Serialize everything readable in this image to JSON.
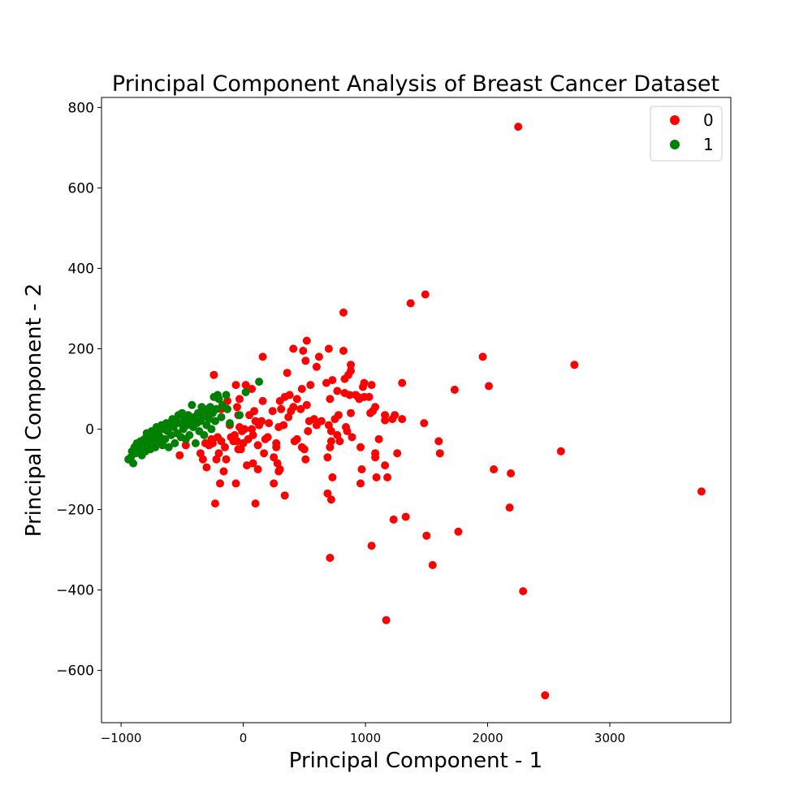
{
  "chart_data": {
    "type": "scatter",
    "title": "Principal Component Analysis of Breast Cancer Dataset",
    "xlabel": "Principal Component - 1",
    "ylabel": "Principal Component - 2",
    "xlim": [
      -1160,
      3990
    ],
    "ylim": [
      -730,
      825
    ],
    "xticks": [
      {
        "value": -1000,
        "label": "−1000"
      },
      {
        "value": 0,
        "label": "0"
      },
      {
        "value": 1000,
        "label": "1000"
      },
      {
        "value": 2000,
        "label": "2000"
      },
      {
        "value": 3000,
        "label": "3000"
      }
    ],
    "yticks": [
      {
        "value": 800,
        "label": "800"
      },
      {
        "value": 600,
        "label": "600"
      },
      {
        "value": 400,
        "label": "400"
      },
      {
        "value": 200,
        "label": "200"
      },
      {
        "value": 0,
        "label": "0"
      },
      {
        "value": -200,
        "label": "−200"
      },
      {
        "value": -400,
        "label": "−400"
      },
      {
        "value": -600,
        "label": "−600"
      }
    ],
    "grid": false,
    "legend": "top-right",
    "series": [
      {
        "name": "0",
        "color": "#ff0000",
        "points": [
          [
            2250,
            752
          ],
          [
            2470,
            -662
          ],
          [
            3750,
            -155
          ],
          [
            2710,
            160
          ],
          [
            2600,
            -55
          ],
          [
            2290,
            -403
          ],
          [
            2180,
            -195
          ],
          [
            2190,
            -110
          ],
          [
            2050,
            -100
          ],
          [
            2010,
            107
          ],
          [
            1960,
            180
          ],
          [
            1760,
            -255
          ],
          [
            1730,
            98
          ],
          [
            1610,
            -60
          ],
          [
            1600,
            -30
          ],
          [
            1550,
            -338
          ],
          [
            1500,
            -265
          ],
          [
            1480,
            15
          ],
          [
            1490,
            335
          ],
          [
            1370,
            313
          ],
          [
            1330,
            -218
          ],
          [
            1300,
            115
          ],
          [
            1300,
            25
          ],
          [
            1260,
            -60
          ],
          [
            1240,
            35
          ],
          [
            1230,
            -225
          ],
          [
            1220,
            25
          ],
          [
            1180,
            -120
          ],
          [
            1160,
            -90
          ],
          [
            1160,
            35
          ],
          [
            1160,
            22
          ],
          [
            1170,
            -475
          ],
          [
            1110,
            -25
          ],
          [
            1090,
            -120
          ],
          [
            1080,
            -70
          ],
          [
            1080,
            -60
          ],
          [
            1080,
            55
          ],
          [
            1060,
            45
          ],
          [
            1050,
            -290
          ],
          [
            1050,
            110
          ],
          [
            1040,
            40
          ],
          [
            1030,
            80
          ],
          [
            990,
            80
          ],
          [
            990,
            115
          ],
          [
            980,
            105
          ],
          [
            970,
            -100
          ],
          [
            960,
            -135
          ],
          [
            960,
            -45
          ],
          [
            940,
            80
          ],
          [
            950,
            75
          ],
          [
            920,
            85
          ],
          [
            890,
            -20
          ],
          [
            880,
            40
          ],
          [
            880,
            145
          ],
          [
            880,
            160
          ],
          [
            870,
            85
          ],
          [
            860,
            135
          ],
          [
            850,
            -5
          ],
          [
            840,
            5
          ],
          [
            830,
            90
          ],
          [
            830,
            125
          ],
          [
            820,
            195
          ],
          [
            820,
            290
          ],
          [
            790,
            -30
          ],
          [
            780,
            35
          ],
          [
            770,
            -15
          ],
          [
            770,
            95
          ],
          [
            750,
            25
          ],
          [
            730,
            -120
          ],
          [
            730,
            122
          ],
          [
            720,
            -5
          ],
          [
            720,
            -30
          ],
          [
            720,
            -175
          ],
          [
            710,
            -320
          ],
          [
            710,
            75
          ],
          [
            710,
            -45
          ],
          [
            700,
            200
          ],
          [
            700,
            10
          ],
          [
            690,
            -70
          ],
          [
            690,
            -160
          ],
          [
            680,
            115
          ],
          [
            640,
            20
          ],
          [
            620,
            180
          ],
          [
            600,
            155
          ],
          [
            600,
            10
          ],
          [
            580,
            25
          ],
          [
            550,
            110
          ],
          [
            540,
            20
          ],
          [
            530,
            -5
          ],
          [
            520,
            60
          ],
          [
            520,
            220
          ],
          [
            510,
            -75
          ],
          [
            510,
            170
          ],
          [
            500,
            -50
          ],
          [
            490,
            195
          ],
          [
            480,
            100
          ],
          [
            480,
            -45
          ],
          [
            470,
            50
          ],
          [
            440,
            -25
          ],
          [
            440,
            75
          ],
          [
            420,
            -30
          ],
          [
            410,
            200
          ],
          [
            410,
            55
          ],
          [
            390,
            45
          ],
          [
            380,
            85
          ],
          [
            370,
            30
          ],
          [
            360,
            140
          ],
          [
            340,
            -165
          ],
          [
            340,
            80
          ],
          [
            330,
            10
          ],
          [
            310,
            50
          ],
          [
            300,
            -100
          ],
          [
            300,
            70
          ],
          [
            290,
            -105
          ],
          [
            290,
            5
          ],
          [
            280,
            -85
          ],
          [
            270,
            -45
          ],
          [
            270,
            -35
          ],
          [
            250,
            -70
          ],
          [
            250,
            -135
          ],
          [
            240,
            45
          ],
          [
            210,
            15
          ],
          [
            200,
            -20
          ],
          [
            180,
            -25
          ],
          [
            170,
            -60
          ],
          [
            160,
            180
          ],
          [
            160,
            70
          ],
          [
            150,
            20
          ],
          [
            130,
            10
          ],
          [
            120,
            -100
          ],
          [
            120,
            -40
          ],
          [
            100,
            -185
          ],
          [
            100,
            20
          ],
          [
            90,
            45
          ],
          [
            80,
            -85
          ],
          [
            80,
            -15
          ],
          [
            70,
            0
          ],
          [
            70,
            100
          ],
          [
            50,
            35
          ],
          [
            40,
            -25
          ],
          [
            30,
            -90
          ],
          [
            20,
            110
          ],
          [
            10,
            0
          ],
          [
            0,
            -35
          ],
          [
            -10,
            -5
          ],
          [
            -20,
            -50
          ],
          [
            -30,
            5
          ],
          [
            -30,
            75
          ],
          [
            -40,
            -50
          ],
          [
            -40,
            35
          ],
          [
            -50,
            -30
          ],
          [
            -50,
            55
          ],
          [
            -60,
            110
          ],
          [
            -60,
            -135
          ],
          [
            -70,
            -15
          ],
          [
            -80,
            -30
          ],
          [
            -100,
            -20
          ],
          [
            -110,
            10
          ],
          [
            -130,
            70
          ],
          [
            -140,
            -75
          ],
          [
            -150,
            -45
          ],
          [
            -160,
            -105
          ],
          [
            -180,
            -30
          ],
          [
            -180,
            50
          ],
          [
            -190,
            -135
          ],
          [
            -200,
            -60
          ],
          [
            -210,
            -20
          ],
          [
            -220,
            -75
          ],
          [
            -230,
            -185
          ],
          [
            -240,
            135
          ],
          [
            -250,
            -35
          ],
          [
            -260,
            -25
          ],
          [
            -280,
            -40
          ],
          [
            -300,
            -95
          ],
          [
            -310,
            -35
          ],
          [
            -330,
            -75
          ],
          [
            -350,
            -60
          ],
          [
            -470,
            -40
          ],
          [
            -520,
            -65
          ]
        ]
      },
      {
        "name": "1",
        "color": "#008000",
        "points": [
          [
            130,
            118
          ],
          [
            20,
            92
          ],
          [
            -30,
            35
          ],
          [
            -110,
            15
          ],
          [
            -130,
            50
          ],
          [
            -140,
            85
          ],
          [
            -170,
            60
          ],
          [
            -180,
            30
          ],
          [
            -200,
            75
          ],
          [
            -210,
            85
          ],
          [
            -220,
            50
          ],
          [
            -230,
            20
          ],
          [
            -240,
            80
          ],
          [
            -250,
            40
          ],
          [
            -260,
            0
          ],
          [
            -270,
            55
          ],
          [
            -280,
            25
          ],
          [
            -290,
            50
          ],
          [
            -300,
            10
          ],
          [
            -310,
            40
          ],
          [
            -320,
            -15
          ],
          [
            -330,
            30
          ],
          [
            -340,
            55
          ],
          [
            -350,
            20
          ],
          [
            -360,
            -5
          ],
          [
            -370,
            40
          ],
          [
            -380,
            15
          ],
          [
            -390,
            -35
          ],
          [
            -400,
            30
          ],
          [
            -410,
            5
          ],
          [
            -420,
            60
          ],
          [
            -430,
            20
          ],
          [
            -440,
            -15
          ],
          [
            -450,
            35
          ],
          [
            -460,
            10
          ],
          [
            -470,
            -25
          ],
          [
            -480,
            25
          ],
          [
            -490,
            0
          ],
          [
            -500,
            40
          ],
          [
            -510,
            -20
          ],
          [
            -520,
            15
          ],
          [
            -530,
            35
          ],
          [
            -540,
            -10
          ],
          [
            -550,
            20
          ],
          [
            -560,
            -35
          ],
          [
            -570,
            5
          ],
          [
            -580,
            25
          ],
          [
            -590,
            -15
          ],
          [
            -600,
            10
          ],
          [
            -610,
            -45
          ],
          [
            -620,
            -5
          ],
          [
            -630,
            15
          ],
          [
            -640,
            -25
          ],
          [
            -650,
            0
          ],
          [
            -660,
            -40
          ],
          [
            -670,
            10
          ],
          [
            -680,
            -20
          ],
          [
            -690,
            -5
          ],
          [
            -700,
            -30
          ],
          [
            -710,
            5
          ],
          [
            -720,
            -45
          ],
          [
            -730,
            -15
          ],
          [
            -740,
            -30
          ],
          [
            -750,
            -5
          ],
          [
            -760,
            -50
          ],
          [
            -770,
            -20
          ],
          [
            -780,
            -35
          ],
          [
            -790,
            -10
          ],
          [
            -800,
            -55
          ],
          [
            -810,
            -25
          ],
          [
            -820,
            -40
          ],
          [
            -830,
            -65
          ],
          [
            -840,
            -30
          ],
          [
            -860,
            -50
          ],
          [
            -870,
            -35
          ],
          [
            -880,
            -60
          ],
          [
            -890,
            -45
          ],
          [
            -900,
            -85
          ],
          [
            -910,
            -55
          ],
          [
            -920,
            -70
          ],
          [
            -940,
            -75
          ]
        ]
      }
    ]
  }
}
